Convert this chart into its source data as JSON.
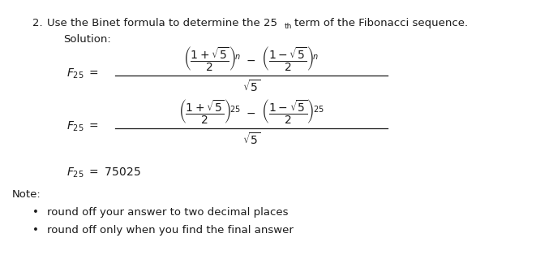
{
  "bg_color": "#ffffff",
  "text_color": "#1a1a1a",
  "figsize": [
    6.61,
    3.3
  ],
  "dpi": 100,
  "title_num": "2.",
  "title_body": "  Use the Binet formula to determine the 25",
  "title_th": "th",
  "title_tail": " term of the Fibonacci sequence.",
  "solution": "Solution:",
  "note_label": "Note:",
  "bullet1": "round off your answer to two decimal places",
  "bullet2": "round off only when you find the final answer",
  "font_main": 9.5,
  "font_formula": 10,
  "font_small": 7.5
}
